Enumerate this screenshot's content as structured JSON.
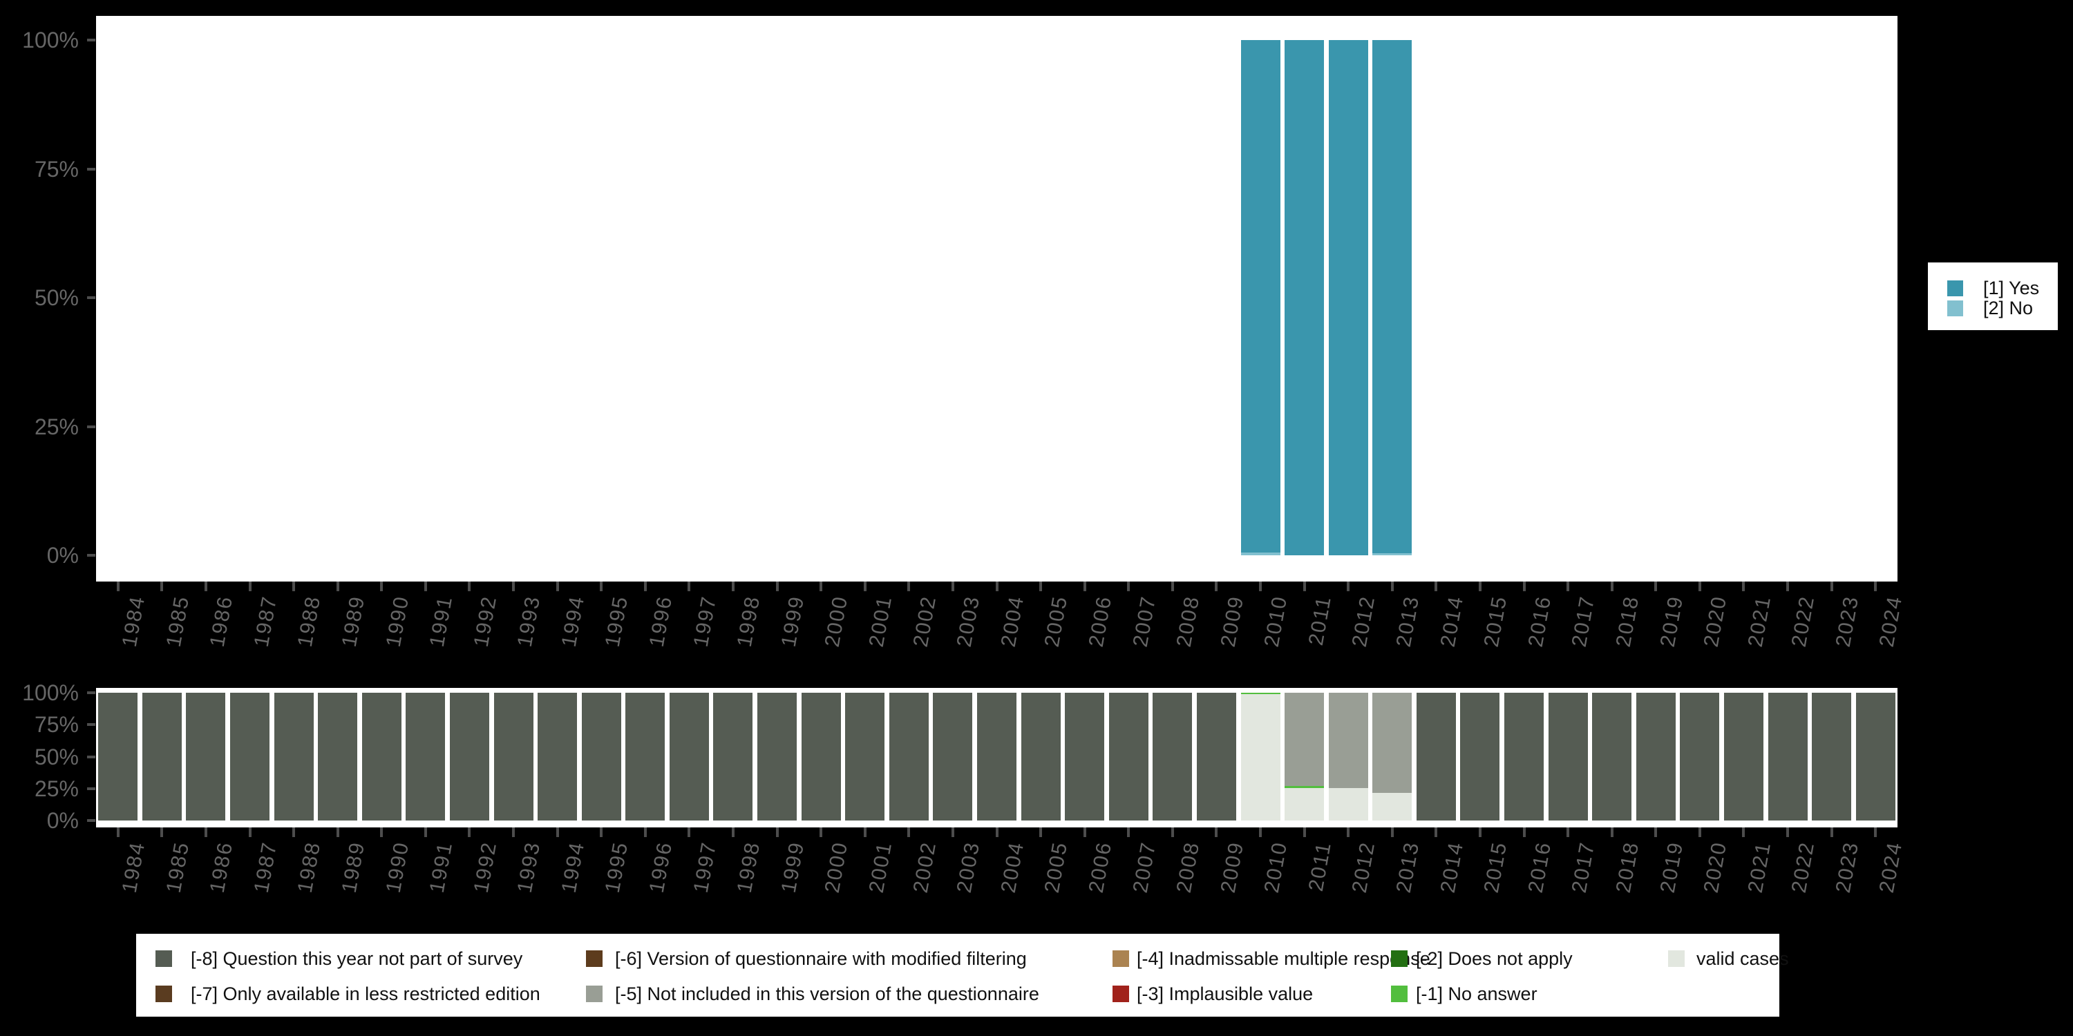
{
  "colors": {
    "background": "#000000",
    "plot_background": "#ffffff",
    "tick": "#4d4d4d",
    "axis_label": "#666666",
    "legend_text": "#111111",
    "legend_background": "#ffffff"
  },
  "legends": {
    "answers": {
      "position": "right",
      "items": [
        {
          "label": "[1] Yes",
          "color": "#3A96AD"
        },
        {
          "label": "[2] No",
          "color": "#82C0CF"
        }
      ]
    },
    "missings": {
      "position": "bottom",
      "rows": [
        [
          {
            "label": "[-8] Question this year not part of survey",
            "color": "#555C53"
          },
          {
            "label": "[-6] Version of questionnaire with modified filtering",
            "color": "#5D3C1D"
          },
          {
            "label": "[-4] Inadmissable multiple response",
            "color": "#AB8351"
          },
          {
            "label": "[-2] Does not apply",
            "color": "#236F12"
          },
          {
            "label": "valid cases",
            "color": "#E2E7DF"
          }
        ],
        [
          {
            "label": "[-7] Only available in less restricted edition",
            "color": "#5A3C20"
          },
          {
            "label": "[-5] Not included in this version of the questionnaire",
            "color": "#999E95"
          },
          {
            "label": "[-3] Implausible value",
            "color": "#A1221B"
          },
          {
            "label": "[-1] No answer",
            "color": "#52BE3E"
          }
        ]
      ]
    }
  },
  "chart_data": [
    {
      "id": "answers",
      "type": "bar",
      "stacked": true,
      "title": "",
      "xlabel": "",
      "ylabel": "",
      "grid": false,
      "ylim": [
        0,
        100
      ],
      "y_ticks": [
        "0%",
        "25%",
        "50%",
        "75%",
        "100%"
      ],
      "legend_position": "right",
      "categories": [
        "1984",
        "1985",
        "1986",
        "1987",
        "1988",
        "1989",
        "1990",
        "1991",
        "1992",
        "1993",
        "1994",
        "1995",
        "1996",
        "1997",
        "1998",
        "1999",
        "2000",
        "2001",
        "2002",
        "2003",
        "2004",
        "2005",
        "2006",
        "2007",
        "2008",
        "2009",
        "2010",
        "2011",
        "2012",
        "2013",
        "2014",
        "2015",
        "2016",
        "2017",
        "2018",
        "2019",
        "2020",
        "2021",
        "2022",
        "2023",
        "2024"
      ],
      "series": [
        {
          "name": "[2] No",
          "color": "#82C0CF",
          "values": {
            "2010": 0.5,
            "2013": 0.4
          }
        },
        {
          "name": "[1] Yes",
          "color": "#3A96AD",
          "values": {
            "2010": 99.5,
            "2011": 100,
            "2012": 100,
            "2013": 99.6
          }
        }
      ]
    },
    {
      "id": "missings",
      "type": "bar",
      "stacked": true,
      "title": "",
      "xlabel": "",
      "ylabel": "",
      "grid": false,
      "ylim": [
        0,
        100
      ],
      "y_ticks": [
        "0%",
        "25%",
        "50%",
        "75%",
        "100%"
      ],
      "legend_position": "bottom",
      "categories": [
        "1984",
        "1985",
        "1986",
        "1987",
        "1988",
        "1989",
        "1990",
        "1991",
        "1992",
        "1993",
        "1994",
        "1995",
        "1996",
        "1997",
        "1998",
        "1999",
        "2000",
        "2001",
        "2002",
        "2003",
        "2004",
        "2005",
        "2006",
        "2007",
        "2008",
        "2009",
        "2010",
        "2011",
        "2012",
        "2013",
        "2014",
        "2015",
        "2016",
        "2017",
        "2018",
        "2019",
        "2020",
        "2021",
        "2022",
        "2023",
        "2024"
      ],
      "series": [
        {
          "name": "valid cases",
          "color": "#E2E7DF",
          "values": {
            "2010": 98.8,
            "2011": 25.6,
            "2012": 25.6,
            "2013": 21.6
          }
        },
        {
          "name": "[-1] No answer",
          "color": "#52BE3E",
          "values": {
            "2010": 1.2,
            "2011": 1.5
          }
        },
        {
          "name": "[-2] Does not apply",
          "color": "#236F12",
          "values": {}
        },
        {
          "name": "[-3] Implausible value",
          "color": "#A1221B",
          "values": {}
        },
        {
          "name": "[-4] Inadmissable multiple response",
          "color": "#AB8351",
          "values": {}
        },
        {
          "name": "[-5] Not included in this version of the questionnaire",
          "color": "#999E95",
          "values": {
            "2011": 72.9,
            "2012": 74.4,
            "2013": 78.4
          }
        },
        {
          "name": "[-6] Version of questionnaire with modified filtering",
          "color": "#5D3C1D",
          "values": {}
        },
        {
          "name": "[-7] Only available in less restricted edition",
          "color": "#5A3C20",
          "values": {}
        },
        {
          "name": "[-8] Question this year not part of survey",
          "color": "#555C53",
          "default": 100,
          "values": {
            "2010": 0,
            "2011": 0,
            "2012": 0,
            "2013": 0
          }
        }
      ]
    }
  ]
}
